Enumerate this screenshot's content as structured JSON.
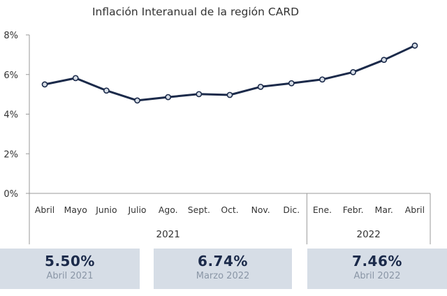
{
  "chart_data": {
    "type": "line",
    "title": "Inflación Interanual de la región CARD",
    "xlabel": "",
    "ylabel": "",
    "categories": [
      "Abril",
      "Mayo",
      "Junio",
      "Julio",
      "Ago.",
      "Sept.",
      "Oct.",
      "Nov.",
      "Dic.",
      "Ene.",
      "Febr.",
      "Mar.",
      "Abril"
    ],
    "year_groups": [
      {
        "label": "2021",
        "count": 9
      },
      {
        "label": "2022",
        "count": 4
      }
    ],
    "series": [
      {
        "values": [
          5.5,
          5.82,
          5.19,
          4.69,
          4.86,
          5.01,
          4.97,
          5.38,
          5.56,
          5.75,
          6.12,
          6.74,
          7.46
        ]
      }
    ],
    "ylim": [
      0,
      8
    ],
    "yticks": [
      0,
      2,
      4,
      6,
      8
    ],
    "ytick_labels": [
      "0%",
      "2%",
      "4%",
      "6%",
      "8%"
    ],
    "grid": false,
    "legend": "none",
    "line_color": "#1b2a4a",
    "marker_fill": "#d6dde6"
  },
  "cards": [
    {
      "value": "5.50%",
      "label": "Abril 2021"
    },
    {
      "value": "6.74%",
      "label": "Marzo 2022"
    },
    {
      "value": "7.46%",
      "label": "Abril 2022"
    }
  ],
  "colors": {
    "card_bg": "#d6dde6",
    "card_value": "#1b2a4a",
    "card_label": "#8a96a6"
  }
}
